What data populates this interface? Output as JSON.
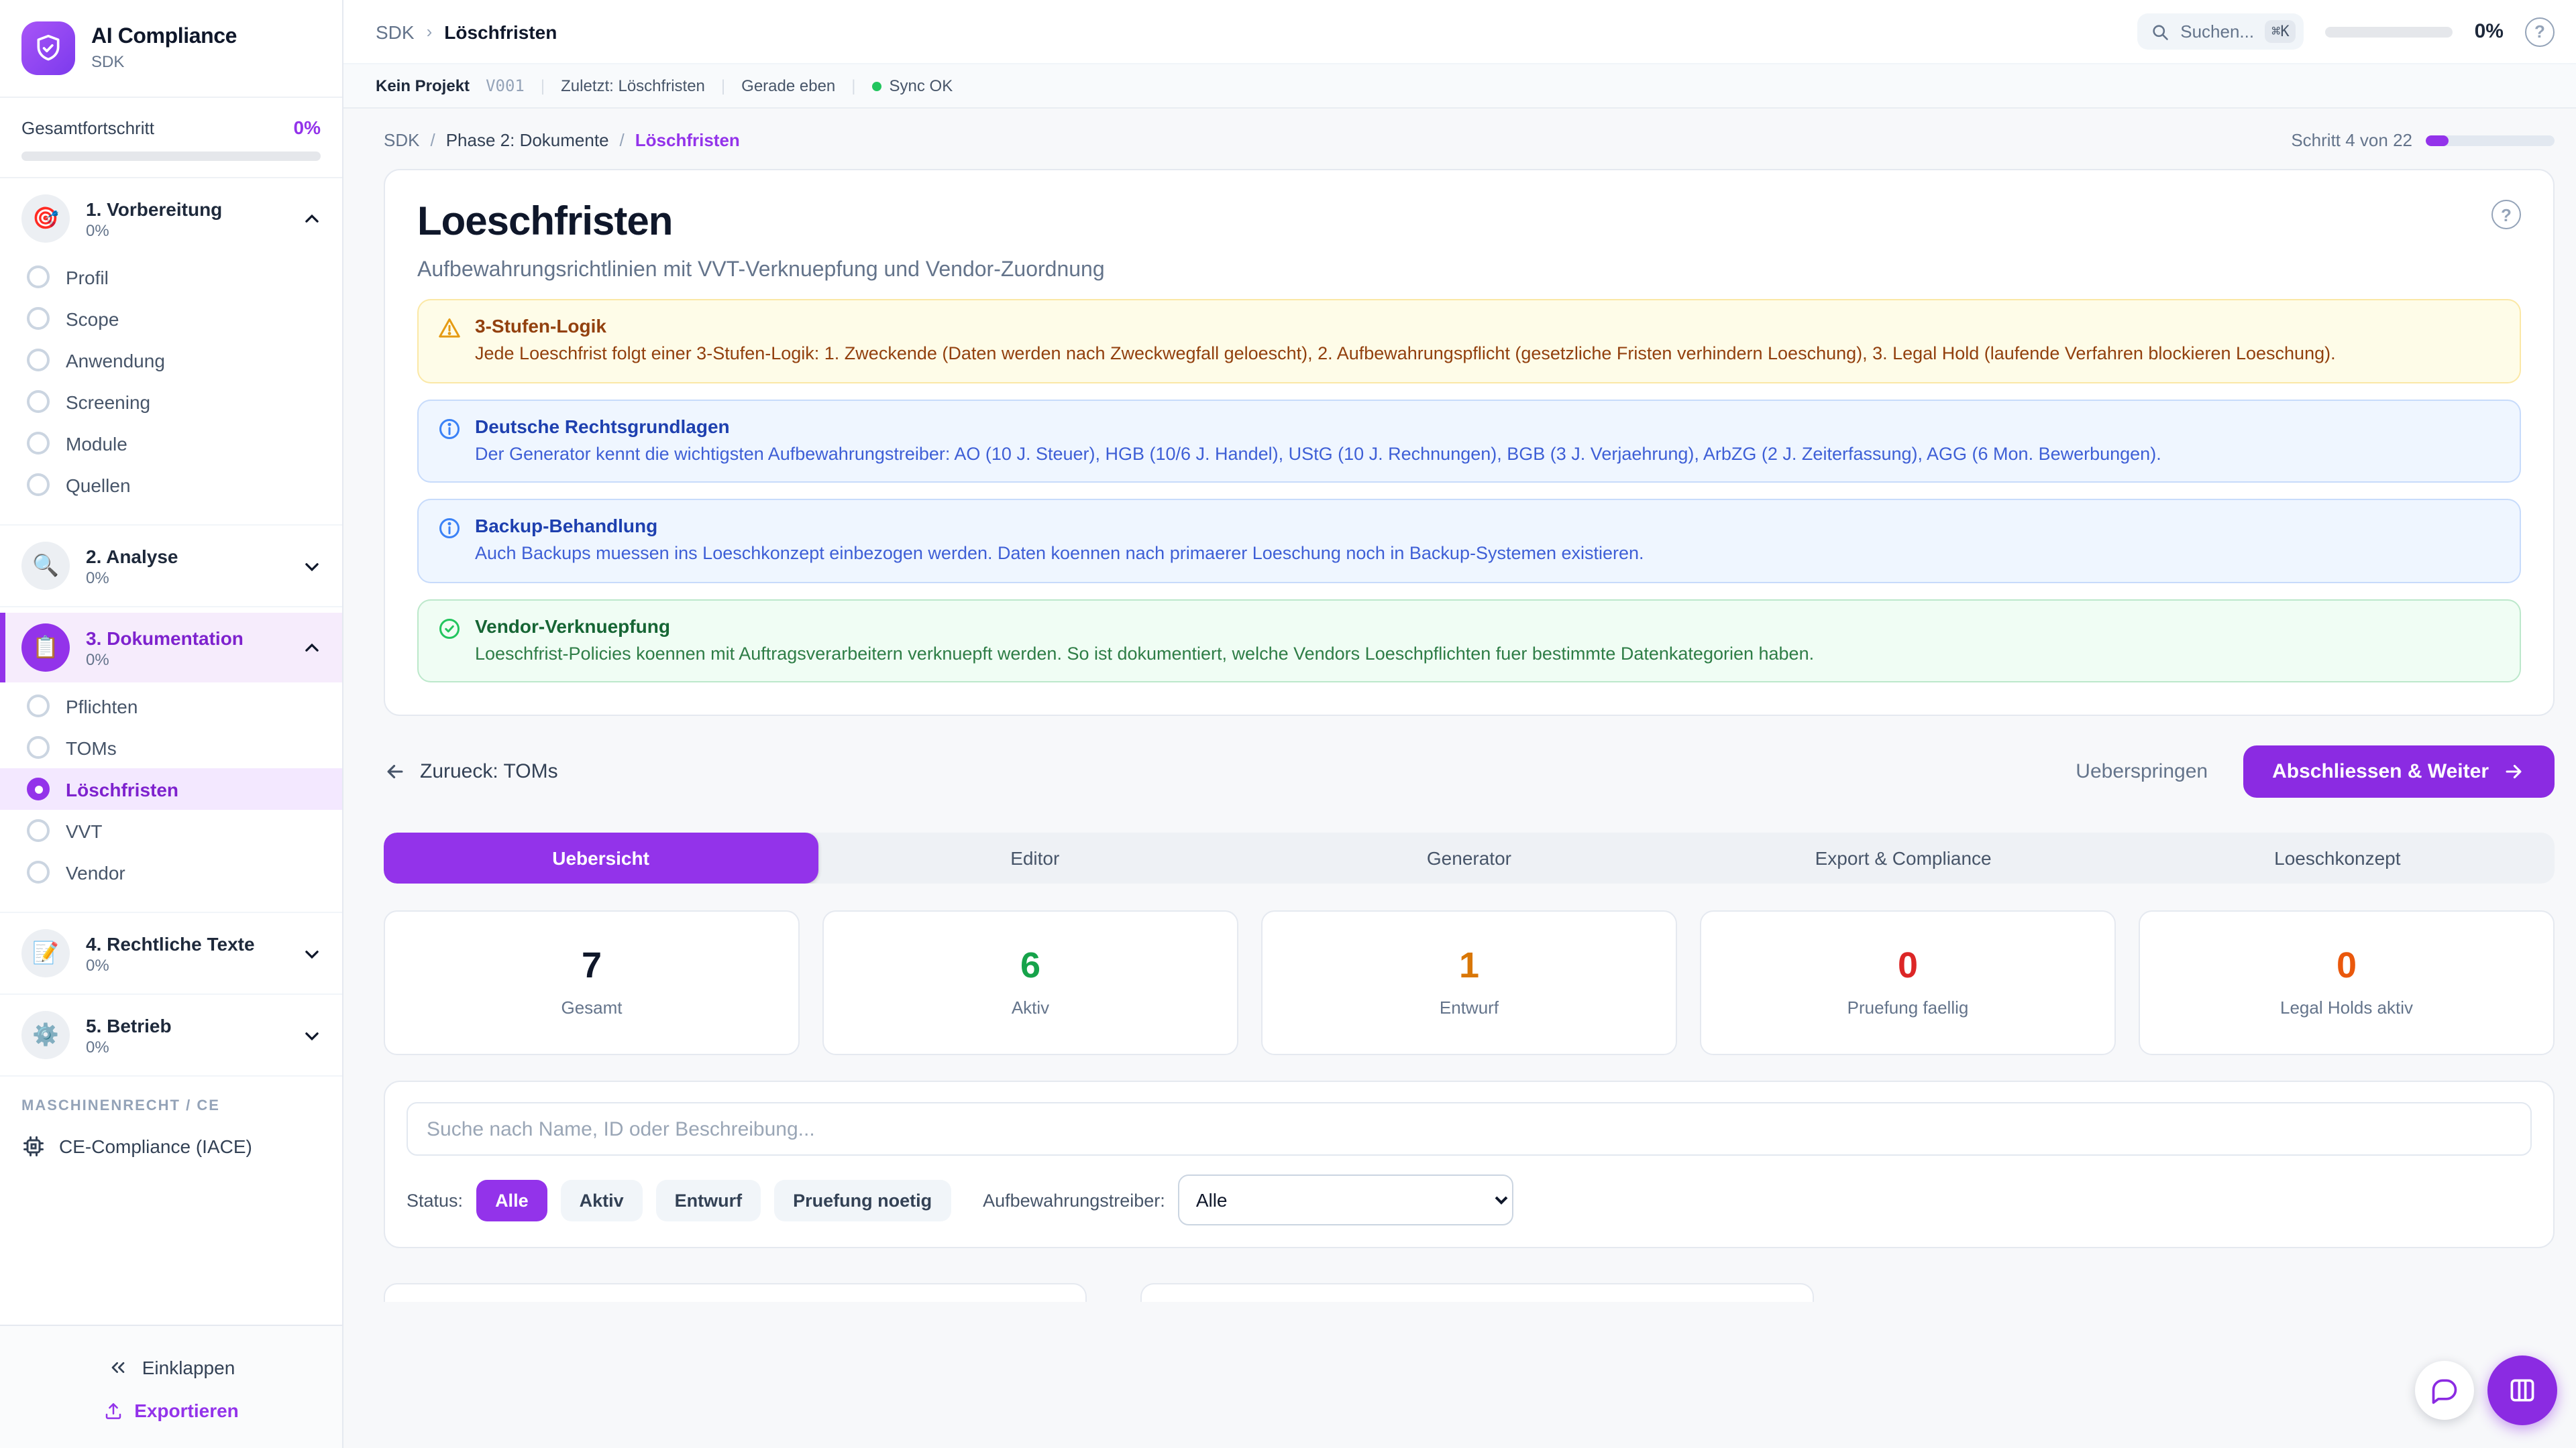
{
  "sidebar": {
    "brand": {
      "title": "AI Compliance",
      "subtitle": "SDK"
    },
    "overall": {
      "label": "Gesamtfortschritt",
      "value": "0%",
      "pct": 0
    },
    "phases": [
      {
        "icon": "🎯",
        "label": "1. Vorbereitung",
        "pct": "0%",
        "items": [
          {
            "label": "Profil"
          },
          {
            "label": "Scope"
          },
          {
            "label": "Anwendung"
          },
          {
            "label": "Screening"
          },
          {
            "label": "Module"
          },
          {
            "label": "Quellen"
          }
        ]
      },
      {
        "icon": "🔍",
        "label": "2. Analyse",
        "pct": "0%",
        "items": []
      },
      {
        "icon": "📋",
        "label": "3. Dokumentation",
        "pct": "0%",
        "items": [
          {
            "label": "Pflichten"
          },
          {
            "label": "TOMs"
          },
          {
            "label": "Löschfristen"
          },
          {
            "label": "VVT"
          },
          {
            "label": "Vendor"
          }
        ]
      },
      {
        "icon": "📝",
        "label": "4. Rechtliche Texte",
        "pct": "0%",
        "items": []
      },
      {
        "icon": "⚙️",
        "label": "5. Betrieb",
        "pct": "0%",
        "items": []
      }
    ],
    "section_label": "MASCHINENRECHT / CE",
    "ce_item_label": "CE-Compliance (IACE)",
    "collapse_label": "Einklappen",
    "export_label": "Exportieren"
  },
  "topbar": {
    "crumb_root": "SDK",
    "crumb_sep": "›",
    "crumb_current": "Löschfristen",
    "search_placeholder": "Suchen...",
    "search_kbd": "⌘K",
    "progress_value": "0%",
    "progress_pct": 0,
    "help_glyph": "?"
  },
  "statusbar": {
    "project": "Kein Projekt",
    "version": "V001",
    "last": "Zuletzt: Löschfristen",
    "time": "Gerade eben",
    "sync": "Sync OK",
    "divider": "|"
  },
  "pagehead": {
    "crumb_root": "SDK",
    "sep": "/",
    "crumb_phase": "Phase 2: Dokumente",
    "crumb_current": "Löschfristen",
    "step_label": "Schritt 4 von 22",
    "step_pct": 18
  },
  "wizard": {
    "title": "Loeschfristen",
    "subtitle": "Aufbewahrungsrichtlinien mit VVT-Verknuepfung und Vendor-Zuordnung",
    "help_glyph": "?",
    "callouts": [
      {
        "type": "warning",
        "title": "3-Stufen-Logik",
        "body": "Jede Loeschfrist folgt einer 3-Stufen-Logik: 1. Zweckende (Daten werden nach Zweckwegfall geloescht), 2. Aufbewahrungspflicht (gesetzliche Fristen verhindern Loeschung), 3. Legal Hold (laufende Verfahren blockieren Loeschung)."
      },
      {
        "type": "info",
        "title": "Deutsche Rechtsgrundlagen",
        "body": "Der Generator kennt die wichtigsten Aufbewahrungstreiber: AO (10 J. Steuer), HGB (10/6 J. Handel), UStG (10 J. Rechnungen), BGB (3 J. Verjaehrung), ArbZG (2 J. Zeiterfassung), AGG (6 Mon. Bewerbungen)."
      },
      {
        "type": "info",
        "title": "Backup-Behandlung",
        "body": "Auch Backups muessen ins Loeschkonzept einbezogen werden. Daten koennen nach primaerer Loeschung noch in Backup-Systemen existieren."
      },
      {
        "type": "success",
        "title": "Vendor-Verknuepfung",
        "body": "Loeschfrist-Policies koennen mit Auftragsverarbeitern verknuepft werden. So ist dokumentiert, welche Vendors Loeschpflichten fuer bestimmte Datenkategorien haben."
      }
    ],
    "back_label": "Zurueck: TOMs",
    "skip_label": "Ueberspringen",
    "next_label": "Abschliessen & Weiter"
  },
  "tabs": [
    {
      "label": "Uebersicht",
      "active": true
    },
    {
      "label": "Editor",
      "active": false
    },
    {
      "label": "Generator",
      "active": false
    },
    {
      "label": "Export & Compliance",
      "active": false
    },
    {
      "label": "Loeschkonzept",
      "active": false
    }
  ],
  "stats": [
    {
      "value": "7",
      "label": "Gesamt",
      "color": "#0f172a"
    },
    {
      "value": "6",
      "label": "Aktiv",
      "color": "#16a34a"
    },
    {
      "value": "1",
      "label": "Entwurf",
      "color": "#d97706"
    },
    {
      "value": "0",
      "label": "Pruefung faellig",
      "color": "#dc2626"
    },
    {
      "value": "0",
      "label": "Legal Holds aktiv",
      "color": "#ea580c"
    }
  ],
  "filters": {
    "search_placeholder": "Suche nach Name, ID oder Beschreibung...",
    "status_label": "Status:",
    "status_options": [
      {
        "label": "Alle",
        "active": true
      },
      {
        "label": "Aktiv",
        "active": false
      },
      {
        "label": "Entwurf",
        "active": false
      },
      {
        "label": "Pruefung noetig",
        "active": false
      }
    ],
    "treiber_label": "Aufbewahrungstreiber:",
    "treiber_selected": "Alle"
  },
  "colors": {
    "accent": "#9333ea",
    "accent_button": "#8b2be2",
    "success": "#16a34a",
    "entwurf_amber": "#d97706",
    "danger_red": "#dc2626",
    "legal_hold_orange": "#ea580c",
    "sync_green": "#22c55e",
    "warn_bg": "#fefce8",
    "info_bg": "#eff6ff",
    "ok_bg": "#f0fdf4"
  }
}
